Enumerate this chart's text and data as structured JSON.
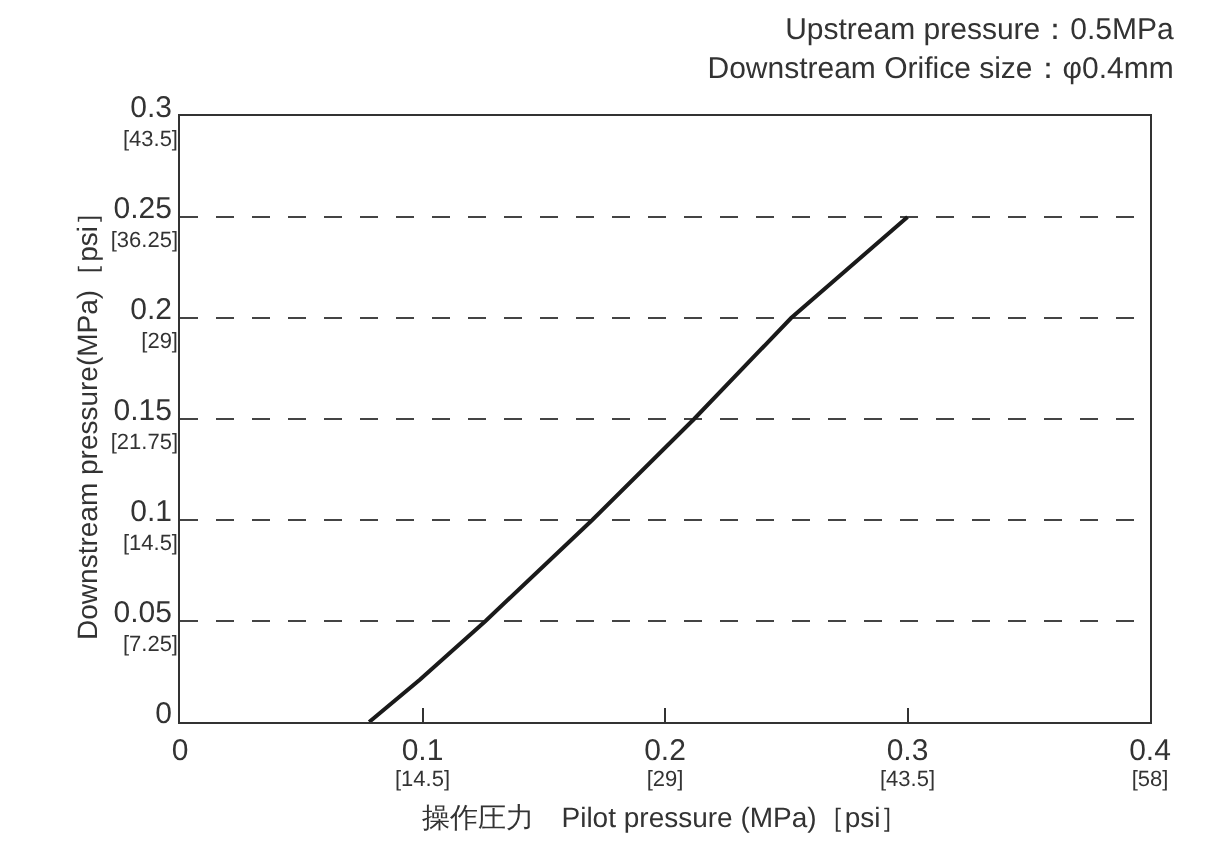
{
  "chart_data": {
    "type": "line",
    "title": "Upstream pressure：0.5MPa",
    "subtitle": "Downstream Orifice size：φ0.4mm",
    "xlabel": "操作圧力　Pilot pressure (MPa)［psi］",
    "ylabel": "Downstream pressure(MPa)［psi］",
    "x": [
      0.078,
      0.099,
      0.126,
      0.17,
      0.212,
      0.252,
      0.3
    ],
    "series": [
      {
        "color": "#1a1a1a",
        "values": [
          0,
          0.021,
          0.05,
          0.1,
          0.15,
          0.2,
          0.25
        ]
      }
    ],
    "xlim": [
      0,
      0.4
    ],
    "ylim": [
      0,
      0.3
    ],
    "xticks": [
      0,
      0.1,
      0.2,
      0.3,
      0.4
    ],
    "yticks": [
      0,
      0.05,
      0.1,
      0.15,
      0.2,
      0.25,
      0.3
    ],
    "x2lim": [
      0,
      58
    ],
    "x2ticks": [
      {
        "value": 14.5,
        "label": "[14.5]"
      },
      {
        "value": 29,
        "label": "[29]"
      },
      {
        "value": 43.5,
        "label": "[43.5]"
      },
      {
        "value": 58,
        "label": "[58]"
      }
    ],
    "y2lim": [
      0,
      43.5
    ],
    "y2ticks": [
      {
        "value": 7.25,
        "label": "[7.25]"
      },
      {
        "value": 14.5,
        "label": "[14.5]"
      },
      {
        "value": 21.75,
        "label": "[21.75]"
      },
      {
        "value": 29,
        "label": "[29]"
      },
      {
        "value": 36.25,
        "label": "[36.25]"
      },
      {
        "value": 43.5,
        "label": "[43.5]"
      }
    ],
    "grid": "y",
    "line_style": "solid",
    "marker": "none"
  }
}
